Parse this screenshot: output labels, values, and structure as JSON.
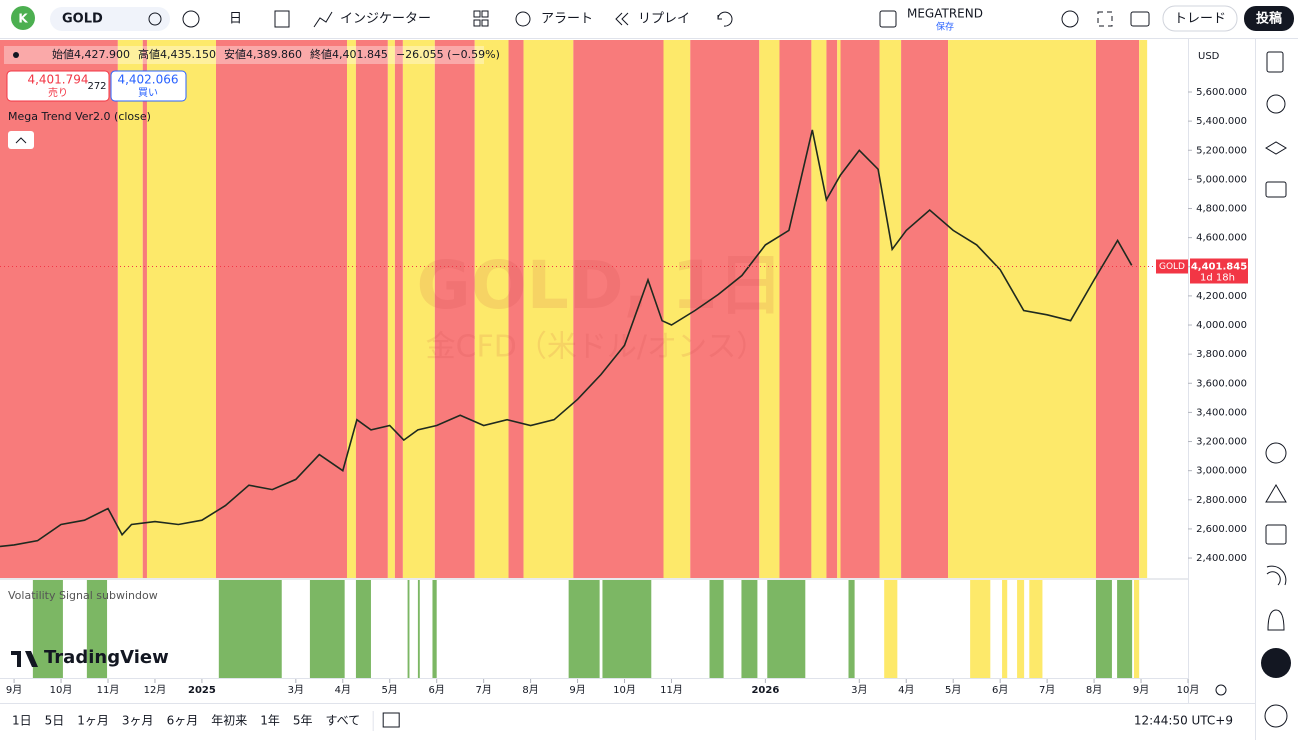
{
  "toolbar": {
    "avatar": "K",
    "symbol": "GOLD",
    "interval": "日",
    "indicators": "インジケーター",
    "alert": "アラート",
    "replay": "リプレイ",
    "layout": "MEGATREND",
    "layout_status": "保存",
    "trade": "トレード",
    "publish": "投稿"
  },
  "legend": {
    "ohlc": [
      "始値4,427.900",
      "高値4,435.150",
      "安値4,389.860",
      "終値4,401.845",
      "−26.055 (−0.59%)"
    ],
    "sell_price": "4,401.794",
    "sell": "売り",
    "spread": "272",
    "buy_price": "4,402.066",
    "buy": "買い",
    "indicator": "Mega Trend Ver2.0 (close)",
    "sub_indicator": "Volatility Signal subwindow"
  },
  "watermark": {
    "title": "GOLD, 1日",
    "subtitle": "金CFD（米ドル/オンス）"
  },
  "chart_data": {
    "type": "line",
    "currency": "USD",
    "series": [
      {
        "color": "#1f2a1f",
        "x": [
          -0.3,
          0,
          0.5,
          1,
          1.5,
          2,
          2.3,
          2.5,
          3,
          3.5,
          4,
          4.5,
          5,
          5.5,
          6,
          6.5,
          7,
          7.3,
          7.6,
          8,
          8.3,
          8.6,
          9,
          9.5,
          10,
          10.5,
          11,
          11.5,
          12,
          12.5,
          13,
          13.5,
          13.8,
          14,
          14.5,
          15,
          15.5,
          16,
          16.5,
          17,
          17.3,
          17.6,
          18,
          18.4,
          18.7,
          19,
          19.5,
          20,
          20.5,
          21,
          21.5,
          22,
          22.5,
          23,
          23.5,
          23.8
        ],
        "values": [
          2480,
          2490,
          2520,
          2630,
          2660,
          2740,
          2560,
          2630,
          2650,
          2630,
          2660,
          2760,
          2900,
          2870,
          2940,
          3110,
          3000,
          3350,
          3280,
          3310,
          3210,
          3280,
          3310,
          3380,
          3310,
          3350,
          3310,
          3350,
          3490,
          3660,
          3860,
          4310,
          4030,
          4000,
          4100,
          4210,
          4340,
          4550,
          4650,
          5340,
          4860,
          5030,
          5200,
          5070,
          4520,
          4650,
          4790,
          4650,
          4550,
          4380,
          4100,
          4070,
          4030,
          4310,
          4580,
          4410
        ]
      }
    ],
    "xlim": [
      -0.3,
      25
    ],
    "ylim": [
      2263,
      5957
    ],
    "xticks": [
      {
        "value": 0,
        "label": "9月"
      },
      {
        "value": 1,
        "label": "10月"
      },
      {
        "value": 2,
        "label": "11月"
      },
      {
        "value": 3,
        "label": "12月"
      },
      {
        "value": 4,
        "label": "2025"
      },
      {
        "value": 6,
        "label": "3月"
      },
      {
        "value": 7,
        "label": "4月"
      },
      {
        "value": 8,
        "label": "5月"
      },
      {
        "value": 9,
        "label": "6月"
      },
      {
        "value": 10,
        "label": "7月"
      },
      {
        "value": 11,
        "label": "8月"
      },
      {
        "value": 12,
        "label": "9月"
      },
      {
        "value": 13,
        "label": "10月"
      },
      {
        "value": 14,
        "label": "11月"
      },
      {
        "value": 16,
        "label": "2026"
      },
      {
        "value": 18,
        "label": "3月"
      },
      {
        "value": 19,
        "label": "4月"
      },
      {
        "value": 20,
        "label": "5月"
      },
      {
        "value": 21,
        "label": "6月"
      },
      {
        "value": 22,
        "label": "7月"
      },
      {
        "value": 23,
        "label": "8月"
      },
      {
        "value": 24,
        "label": "9月"
      },
      {
        "value": 25,
        "label": "10月"
      }
    ],
    "yticks": [
      {
        "value": 2400,
        "label": "2,400.000"
      },
      {
        "value": 2600,
        "label": "2,600.000"
      },
      {
        "value": 2800,
        "label": "2,800.000"
      },
      {
        "value": 3000,
        "label": "3,000.000"
      },
      {
        "value": 3200,
        "label": "3,200.000"
      },
      {
        "value": 3400,
        "label": "3,400.000"
      },
      {
        "value": 3600,
        "label": "3,600.000"
      },
      {
        "value": 3800,
        "label": "3,800.000"
      },
      {
        "value": 4000,
        "label": "4,000.000"
      },
      {
        "value": 4200,
        "label": "4,200.000"
      },
      {
        "value": 4400,
        "label": "4,400.000"
      },
      {
        "value": 4600,
        "label": "4,600.000"
      },
      {
        "value": 4800,
        "label": "4,800.000"
      },
      {
        "value": 5000,
        "label": "5,000.000"
      },
      {
        "value": 5200,
        "label": "5,200.000"
      },
      {
        "value": 5400,
        "label": "5,400.000"
      },
      {
        "value": 5600,
        "label": "5,600.000"
      }
    ],
    "last_price": {
      "value": 4401.845,
      "label": "4,401.845",
      "symbol": "GOLD",
      "countdown": "1d 18h",
      "color": "#f23645"
    },
    "bands": [
      {
        "from": -0.3,
        "to": 2.21,
        "color": "#f87b7b"
      },
      {
        "from": 2.21,
        "to": 2.74,
        "color": "#fde96a"
      },
      {
        "from": 2.74,
        "to": 2.83,
        "color": "#f87b7b"
      },
      {
        "from": 2.83,
        "to": 4.3,
        "color": "#fde96a"
      },
      {
        "from": 4.3,
        "to": 7.09,
        "color": "#f87b7b"
      },
      {
        "from": 7.09,
        "to": 7.28,
        "color": "#fde96a"
      },
      {
        "from": 7.28,
        "to": 7.96,
        "color": "#f87b7b"
      },
      {
        "from": 7.96,
        "to": 8.11,
        "color": "#fde96a"
      },
      {
        "from": 8.11,
        "to": 8.28,
        "color": "#f87b7b"
      },
      {
        "from": 8.28,
        "to": 8.96,
        "color": "#fde96a"
      },
      {
        "from": 8.96,
        "to": 9.81,
        "color": "#f87b7b"
      },
      {
        "from": 9.81,
        "to": 10.53,
        "color": "#fde96a"
      },
      {
        "from": 10.53,
        "to": 10.85,
        "color": "#f87b7b"
      },
      {
        "from": 10.85,
        "to": 11.91,
        "color": "#fde96a"
      },
      {
        "from": 11.91,
        "to": 13.83,
        "color": "#f87b7b"
      },
      {
        "from": 13.83,
        "to": 14.4,
        "color": "#fde96a"
      },
      {
        "from": 14.4,
        "to": 15.87,
        "color": "#f87b7b"
      },
      {
        "from": 15.87,
        "to": 16.3,
        "color": "#fde96a"
      },
      {
        "from": 16.3,
        "to": 16.98,
        "color": "#f87b7b"
      },
      {
        "from": 16.98,
        "to": 17.3,
        "color": "#fde96a"
      },
      {
        "from": 17.3,
        "to": 17.53,
        "color": "#f87b7b"
      },
      {
        "from": 17.53,
        "to": 17.6,
        "color": "#fde96a"
      },
      {
        "from": 17.6,
        "to": 18.43,
        "color": "#f87b7b"
      },
      {
        "from": 18.43,
        "to": 18.89,
        "color": "#fde96a"
      },
      {
        "from": 18.89,
        "to": 19.89,
        "color": "#f87b7b"
      },
      {
        "from": 19.89,
        "to": 23.04,
        "color": "#fde96a"
      },
      {
        "from": 23.04,
        "to": 23.96,
        "color": "#f87b7b"
      },
      {
        "from": 23.96,
        "to": 24.13,
        "color": "#fde96a"
      }
    ],
    "sub_bands": [
      {
        "from": 0.4,
        "to": 1.04,
        "color": "#7cb764"
      },
      {
        "from": 1.55,
        "to": 1.98,
        "color": "#7cb764"
      },
      {
        "from": 4.36,
        "to": 5.7,
        "color": "#7cb764"
      },
      {
        "from": 6.3,
        "to": 7.04,
        "color": "#7cb764"
      },
      {
        "from": 7.28,
        "to": 7.6,
        "color": "#7cb764"
      },
      {
        "from": 8.38,
        "to": 8.42,
        "color": "#7cb764"
      },
      {
        "from": 8.6,
        "to": 8.64,
        "color": "#7cb764"
      },
      {
        "from": 8.91,
        "to": 9.0,
        "color": "#7cb764"
      },
      {
        "from": 11.81,
        "to": 12.47,
        "color": "#7cb764"
      },
      {
        "from": 12.53,
        "to": 13.57,
        "color": "#7cb764"
      },
      {
        "from": 14.81,
        "to": 15.11,
        "color": "#7cb764"
      },
      {
        "from": 15.49,
        "to": 15.83,
        "color": "#7cb764"
      },
      {
        "from": 16.04,
        "to": 16.85,
        "color": "#7cb764"
      },
      {
        "from": 17.77,
        "to": 17.9,
        "color": "#7cb764"
      },
      {
        "from": 18.53,
        "to": 18.81,
        "color": "#fde96a"
      },
      {
        "from": 20.36,
        "to": 20.79,
        "color": "#fde96a"
      },
      {
        "from": 21.04,
        "to": 21.15,
        "color": "#fde96a"
      },
      {
        "from": 21.36,
        "to": 21.51,
        "color": "#fde96a"
      },
      {
        "from": 21.62,
        "to": 21.9,
        "color": "#fde96a"
      },
      {
        "from": 23.04,
        "to": 23.38,
        "color": "#7cb764"
      },
      {
        "from": 23.49,
        "to": 23.81,
        "color": "#7cb764"
      },
      {
        "from": 23.85,
        "to": 23.96,
        "color": "#fde96a"
      }
    ]
  },
  "bottom_bar": {
    "ranges": [
      "1日",
      "5日",
      "1ヶ月",
      "3ヶ月",
      "6ヶ月",
      "年初来",
      "1年",
      "5年",
      "すべて"
    ],
    "clock": "12:44:50 UTC+9",
    "brand": "TradingView"
  }
}
